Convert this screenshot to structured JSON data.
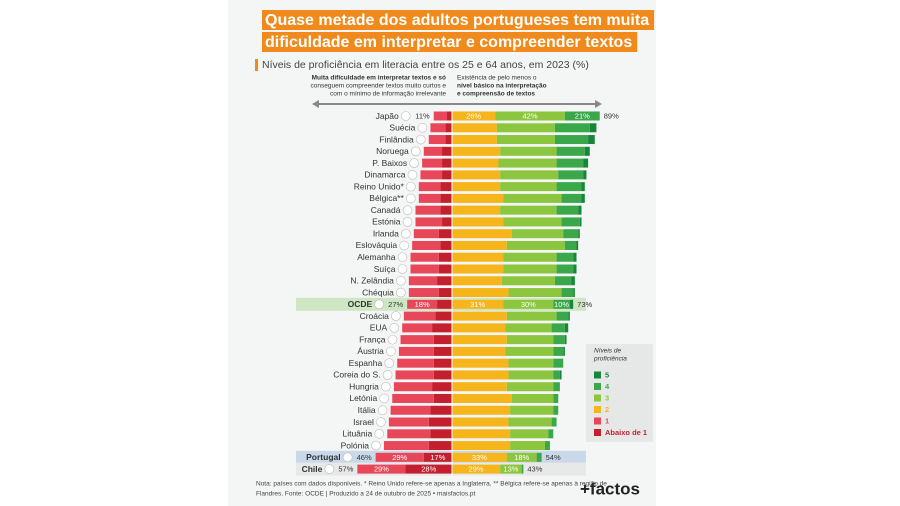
{
  "chart_data": {
    "type": "diverging_bar",
    "title": [
      "Quase metade dos adultos portugueses tem muita",
      "dificuldade em interpretar e compreender textos"
    ],
    "subtitle": "Níveis de proficiência em literacia entre os 25 e 64 anos, em 2023 (%)",
    "left_note": [
      "Muita dificuldade em interpretar textos e só",
      "conseguem compreender textos muito curtos e",
      "com o mínimo de informação irrelevante"
    ],
    "right_note": [
      "Existência de pelo menos o",
      "nível básico na interpretação",
      "e compreensão de textos"
    ],
    "legend_title": [
      "Níveis de",
      "proficiência"
    ],
    "categories": [
      "Japão",
      "Suécia",
      "Finlândia",
      "Noruega",
      "P. Baixos",
      "Dinamarca",
      "Reino Unido*",
      "Bélgica**",
      "Canadá",
      "Estónia",
      "Irlanda",
      "Eslováquia",
      "Alemanha",
      "Suíça",
      "N. Zelândia",
      "Chéquia",
      "OCDE",
      "Croácia",
      "EUA",
      "França",
      "Áustria",
      "Espanha",
      "Coreia do S.",
      "Hungria",
      "Letónia",
      "Itália",
      "Israel",
      "Lituânia",
      "Polónia",
      "Portugal",
      "Chile"
    ],
    "series": [
      {
        "name": "5",
        "side": "right",
        "color": "#17853a",
        "values": [
          0,
          4,
          4,
          3,
          3,
          2,
          2,
          2,
          2,
          1,
          1,
          1,
          2,
          2,
          2,
          1,
          2,
          1,
          2,
          1,
          1,
          0,
          1,
          0,
          0,
          0,
          0,
          0,
          0,
          0,
          0
        ]
      },
      {
        "name": "4",
        "side": "right",
        "color": "#3aa84a",
        "values": [
          21,
          21,
          20,
          17,
          16,
          15,
          15,
          12,
          13,
          11,
          9,
          7,
          10,
          10,
          10,
          7,
          10,
          7,
          8,
          7,
          6,
          6,
          4,
          4,
          3,
          3,
          3,
          3,
          3,
          3,
          1
        ],
        "value_labels": [
          "21%",
          null,
          null,
          null,
          null,
          null,
          null,
          null,
          null,
          null,
          null,
          null,
          null,
          null,
          null,
          null,
          "10%",
          null,
          null,
          null,
          null,
          null,
          null,
          null,
          null,
          null,
          null,
          null,
          null,
          null,
          null
        ]
      },
      {
        "name": "3",
        "side": "right",
        "color": "#8cc63f",
        "values": [
          42,
          35,
          35,
          34,
          35,
          35,
          34,
          35,
          34,
          35,
          31,
          35,
          32,
          32,
          32,
          32,
          30,
          30,
          28,
          28,
          29,
          27,
          27,
          28,
          25,
          26,
          26,
          23,
          21,
          18,
          13
        ],
        "value_labels": [
          "42%",
          null,
          null,
          null,
          null,
          null,
          null,
          null,
          null,
          null,
          null,
          null,
          null,
          null,
          null,
          null,
          "30%",
          null,
          null,
          null,
          null,
          null,
          null,
          null,
          null,
          null,
          null,
          null,
          null,
          "18%",
          "13%"
        ]
      },
      {
        "name": "2",
        "side": "right",
        "color": "#f5b51b",
        "values": [
          26,
          27,
          27,
          29,
          28,
          29,
          29,
          31,
          29,
          31,
          36,
          33,
          31,
          31,
          30,
          34,
          31,
          33,
          32,
          33,
          32,
          34,
          34,
          33,
          36,
          35,
          34,
          35,
          35,
          33,
          29
        ],
        "value_labels": [
          "26%",
          null,
          null,
          null,
          null,
          null,
          null,
          null,
          null,
          null,
          null,
          null,
          null,
          null,
          null,
          null,
          "31%",
          null,
          null,
          null,
          null,
          null,
          null,
          null,
          null,
          null,
          null,
          null,
          null,
          "33%",
          "29%"
        ]
      },
      {
        "name": "1",
        "side": "left",
        "color": "#e8475a",
        "values": [
          8,
          9,
          10,
          11,
          12,
          13,
          13,
          13,
          15,
          16,
          15,
          17,
          17,
          17,
          17,
          18,
          18,
          19,
          18,
          20,
          21,
          22,
          23,
          23,
          25,
          24,
          24,
          26,
          27,
          29,
          29
        ],
        "value_labels": [
          null,
          null,
          null,
          null,
          null,
          null,
          null,
          null,
          null,
          null,
          null,
          null,
          null,
          null,
          null,
          null,
          "18%",
          null,
          null,
          null,
          null,
          null,
          null,
          null,
          null,
          null,
          null,
          null,
          null,
          "29%",
          "29%"
        ]
      },
      {
        "name": "Abaixo de 1",
        "side": "left",
        "color": "#c41f2f",
        "values": [
          3,
          4,
          4,
          6,
          6,
          6,
          7,
          7,
          7,
          6,
          8,
          7,
          8,
          8,
          9,
          8,
          9,
          10,
          12,
          11,
          11,
          11,
          11,
          12,
          11,
          13,
          14,
          13,
          14,
          17,
          28
        ],
        "value_labels": [
          null,
          null,
          null,
          null,
          null,
          null,
          null,
          null,
          null,
          null,
          null,
          null,
          null,
          null,
          null,
          null,
          null,
          null,
          null,
          null,
          null,
          null,
          null,
          null,
          null,
          null,
          null,
          null,
          null,
          "17%",
          "28%"
        ]
      }
    ],
    "left_totals": {
      "values": [
        11,
        null,
        null,
        null,
        null,
        null,
        null,
        null,
        null,
        null,
        null,
        null,
        null,
        null,
        null,
        null,
        27,
        null,
        null,
        null,
        null,
        null,
        null,
        null,
        null,
        null,
        null,
        null,
        null,
        46,
        57
      ],
      "value_labels": [
        "11%",
        null,
        null,
        null,
        null,
        null,
        null,
        null,
        null,
        null,
        null,
        null,
        null,
        null,
        null,
        null,
        "27%",
        null,
        null,
        null,
        null,
        null,
        null,
        null,
        null,
        null,
        null,
        null,
        null,
        "46%",
        "57%"
      ]
    },
    "right_totals": {
      "values": [
        89,
        null,
        null,
        null,
        null,
        null,
        null,
        null,
        null,
        null,
        null,
        null,
        null,
        null,
        null,
        null,
        73,
        null,
        null,
        null,
        null,
        null,
        null,
        null,
        null,
        null,
        null,
        null,
        null,
        54,
        43
      ],
      "value_labels": [
        "89%",
        null,
        null,
        null,
        null,
        null,
        null,
        null,
        null,
        null,
        null,
        null,
        null,
        null,
        null,
        null,
        "73%",
        null,
        null,
        null,
        null,
        null,
        null,
        null,
        null,
        null,
        null,
        null,
        null,
        "54%",
        "43%"
      ]
    },
    "footnote": [
      "Nota: países com dados disponíveis. * Reino Unido refere-se apenas a Inglaterra. ** Bélgica refere-se apenas à região de",
      "Flandres. Fonte: OCDE | Produzido a 24 de outubro de 2025 • maisfactos.pt"
    ],
    "logo": "+factos"
  }
}
